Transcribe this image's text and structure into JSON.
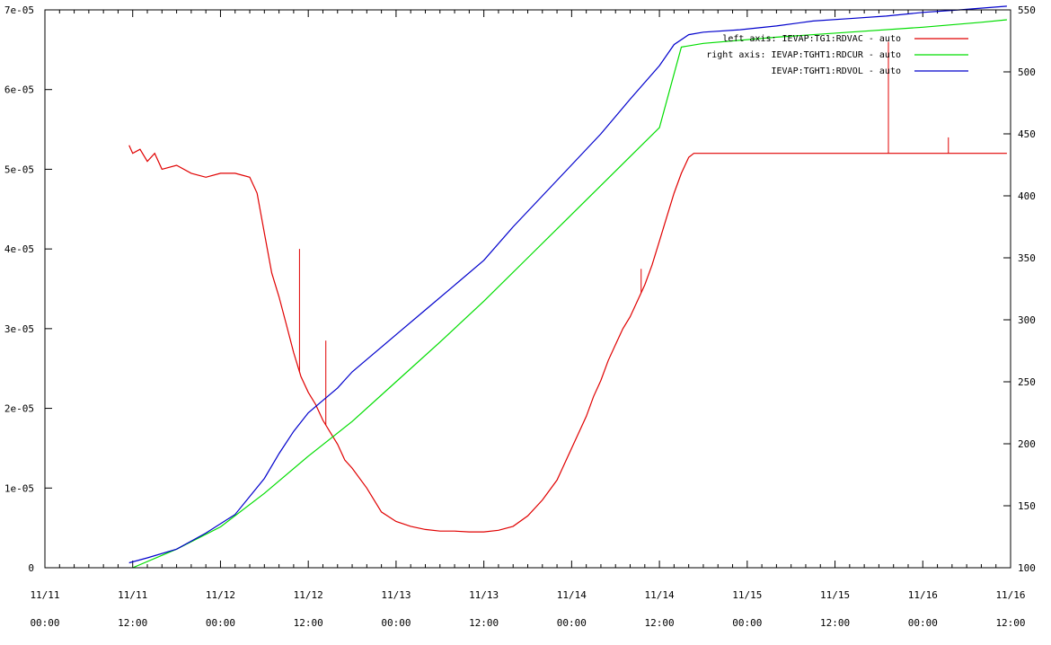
{
  "chart_data": {
    "type": "line",
    "xlabel": "",
    "ylabel": "",
    "x_ticks": [
      {
        "date": "11/11",
        "time": "00:00",
        "t_hours": 0
      },
      {
        "date": "11/11",
        "time": "12:00",
        "t_hours": 12
      },
      {
        "date": "11/12",
        "time": "00:00",
        "t_hours": 24
      },
      {
        "date": "11/12",
        "time": "12:00",
        "t_hours": 36
      },
      {
        "date": "11/13",
        "time": "00:00",
        "t_hours": 48
      },
      {
        "date": "11/13",
        "time": "12:00",
        "t_hours": 60
      },
      {
        "date": "11/14",
        "time": "00:00",
        "t_hours": 72
      },
      {
        "date": "11/14",
        "time": "12:00",
        "t_hours": 84
      },
      {
        "date": "11/15",
        "time": "00:00",
        "t_hours": 96
      },
      {
        "date": "11/15",
        "time": "12:00",
        "t_hours": 108
      },
      {
        "date": "11/16",
        "time": "00:00",
        "t_hours": 120
      },
      {
        "date": "11/16",
        "time": "12:00",
        "t_hours": 132
      }
    ],
    "xlim_hours": [
      0,
      132
    ],
    "left_axis": {
      "ticks": [
        "0",
        "1e-05",
        "2e-05",
        "3e-05",
        "4e-05",
        "5e-05",
        "6e-05",
        "7e-05"
      ],
      "ylim": [
        0,
        7e-05
      ]
    },
    "right_axis": {
      "ticks": [
        "100",
        "150",
        "200",
        "250",
        "300",
        "350",
        "400",
        "450",
        "500",
        "550"
      ],
      "ylim": [
        100,
        550
      ]
    },
    "grid": false,
    "legend_position": "top-right",
    "series": [
      {
        "name": "left axis: IEVAP:TG1:RDVAC  - auto",
        "axis": "left",
        "color": "#e00000",
        "x_hours": [
          11.5,
          12,
          13,
          14,
          15,
          16,
          18,
          20,
          22,
          24,
          26,
          28,
          29,
          30,
          31,
          32,
          33,
          34,
          35,
          36,
          37,
          38,
          39,
          40,
          41,
          42,
          44,
          46,
          48,
          50,
          52,
          54,
          56,
          58,
          60,
          62,
          64,
          66,
          68,
          70,
          71,
          72,
          73,
          74,
          75,
          76,
          77,
          78,
          79,
          80,
          81,
          82,
          83,
          84,
          85,
          86,
          87,
          88,
          88.7,
          90,
          95,
          100,
          105,
          110,
          115,
          120,
          125,
          130,
          131.5
        ],
        "y_values": [
          5.3e-05,
          5.2e-05,
          5.25e-05,
          5.1e-05,
          5.2e-05,
          5e-05,
          5.05e-05,
          4.95e-05,
          4.9e-05,
          4.95e-05,
          4.95e-05,
          4.9e-05,
          4.7e-05,
          4.2e-05,
          3.7e-05,
          3.4e-05,
          3.05e-05,
          2.7e-05,
          2.4e-05,
          2.2e-05,
          2.05e-05,
          1.85e-05,
          1.7e-05,
          1.55e-05,
          1.35e-05,
          1.25e-05,
          1e-05,
          7e-06,
          5.8e-06,
          5.2e-06,
          4.8e-06,
          4.6e-06,
          4.6e-06,
          4.5e-06,
          4.5e-06,
          4.7e-06,
          5.2e-06,
          6.5e-06,
          8.5e-06,
          1.1e-05,
          1.3e-05,
          1.5e-05,
          1.7e-05,
          1.9e-05,
          2.15e-05,
          2.35e-05,
          2.6e-05,
          2.8e-05,
          3e-05,
          3.15e-05,
          3.35e-05,
          3.55e-05,
          3.8e-05,
          4.1e-05,
          4.4e-05,
          4.7e-05,
          4.95e-05,
          5.15e-05,
          5.2e-05,
          5.2e-05,
          5.2e-05,
          5.2e-05,
          5.2e-05,
          5.2e-05,
          5.2e-05,
          5.2e-05,
          5.2e-05,
          5.2e-05,
          5.2e-05
        ],
        "spikes": [
          {
            "t_hours": 34.8,
            "value": 4e-05
          },
          {
            "t_hours": 38.4,
            "value": 2.85e-05
          },
          {
            "t_hours": 81.5,
            "value": 3.75e-05
          },
          {
            "t_hours": 115.3,
            "value": 6.6e-05
          },
          {
            "t_hours": 123.5,
            "value": 5.4e-05
          }
        ]
      },
      {
        "name": "right axis: IEVAP:TGHT1:RDCUR  - auto",
        "axis": "right",
        "color": "#00dd00",
        "x_hours": [
          12,
          18,
          24,
          30,
          36,
          42,
          48,
          54,
          60,
          66,
          72,
          78,
          84,
          87,
          90,
          100,
          110,
          120,
          128,
          131.5
        ],
        "y_values": [
          100,
          115,
          133,
          160,
          190,
          218,
          250,
          282,
          315,
          350,
          385,
          420,
          455,
          520,
          523,
          528,
          532,
          536,
          540,
          542
        ]
      },
      {
        "name": "IEVAP:TGHT1:RDVOL  - auto",
        "axis": "right",
        "color": "#0000cc",
        "x_hours": [
          11.5,
          14,
          18,
          22,
          26,
          30,
          32,
          34,
          36,
          38,
          40,
          42,
          44,
          48,
          52,
          56,
          60,
          64,
          68,
          72,
          76,
          80,
          84,
          86,
          88,
          90,
          95,
          100,
          105,
          110,
          115,
          120,
          125,
          131.5
        ],
        "y_values": [
          104,
          108,
          115,
          128,
          143,
          172,
          192,
          210,
          225,
          235,
          245,
          258,
          268,
          288,
          308,
          328,
          348,
          375,
          400,
          425,
          450,
          478,
          505,
          522,
          530,
          532,
          534,
          537,
          541,
          543,
          545,
          548,
          550,
          553
        ]
      }
    ]
  }
}
